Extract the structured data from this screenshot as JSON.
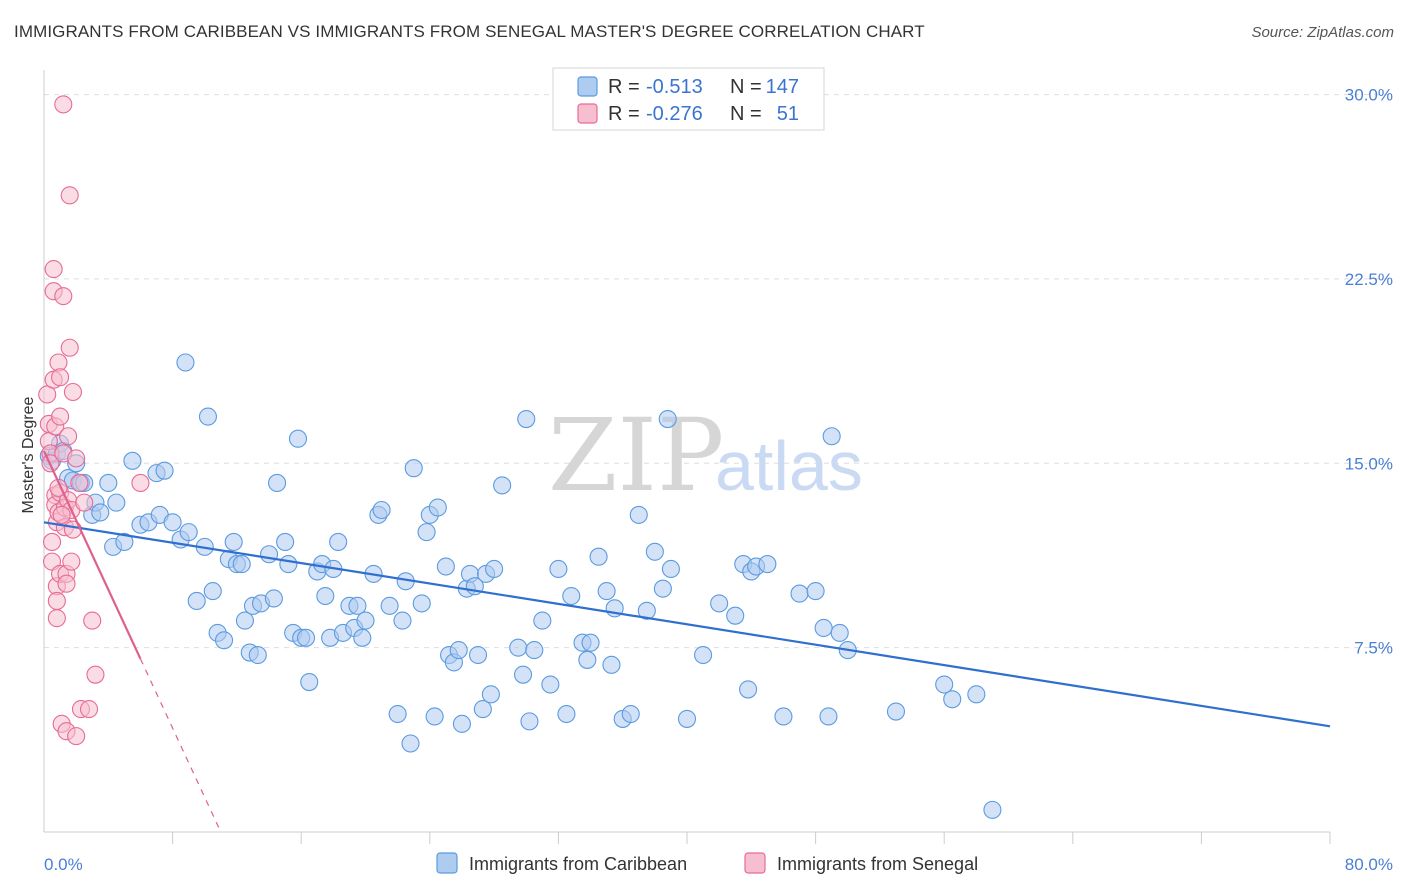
{
  "header": {
    "title": "IMMIGRANTS FROM CARIBBEAN VS IMMIGRANTS FROM SENEGAL MASTER'S DEGREE CORRELATION CHART",
    "source": "Source: ZipAtlas.com"
  },
  "watermark": {
    "zip": "ZIP",
    "atlas": "atlas"
  },
  "colors": {
    "caribbean": "#5b9be0",
    "caribbean_fill": "#aecbf0",
    "senegal": "#e86a96",
    "senegal_fill": "#f6bfd0",
    "caribbean_line": "#2f6fcf",
    "senegal_line": "#e0608c"
  },
  "legend_top": {
    "rows": [
      {
        "r_label": "R =",
        "r_value": "-0.513",
        "n_label": "N =",
        "n_value": "147"
      },
      {
        "r_label": "R =",
        "r_value": "-0.276",
        "n_label": "N =",
        "n_value": "51"
      }
    ]
  },
  "chart_data": {
    "type": "scatter",
    "title": "IMMIGRANTS FROM CARIBBEAN VS IMMIGRANTS FROM SENEGAL MASTER'S DEGREE CORRELATION CHART",
    "xlabel": "",
    "ylabel": "Master's Degree",
    "xlim": [
      0,
      80
    ],
    "ylim": [
      0,
      31
    ],
    "x_tick_labels": [
      "0.0%",
      "80.0%"
    ],
    "y_ticks": [
      7.5,
      15.0,
      22.5,
      30.0
    ],
    "y_tick_labels": [
      "7.5%",
      "15.0%",
      "22.5%",
      "30.0%"
    ],
    "series": [
      {
        "name": "Immigrants from Caribbean",
        "trend": {
          "x": [
            0,
            80
          ],
          "y": [
            12.6,
            4.3
          ]
        },
        "points": [
          [
            0.3,
            15.3
          ],
          [
            0.5,
            15.1
          ],
          [
            0.8,
            15.4
          ],
          [
            1.0,
            15.8
          ],
          [
            1.2,
            15.5
          ],
          [
            1.5,
            14.4
          ],
          [
            1.8,
            14.3
          ],
          [
            2.0,
            15.0
          ],
          [
            2.3,
            14.2
          ],
          [
            2.5,
            14.2
          ],
          [
            3.0,
            12.9
          ],
          [
            3.2,
            13.4
          ],
          [
            3.5,
            13.0
          ],
          [
            4.0,
            14.2
          ],
          [
            4.3,
            11.6
          ],
          [
            4.5,
            13.4
          ],
          [
            5.0,
            11.8
          ],
          [
            5.5,
            15.1
          ],
          [
            6.0,
            12.5
          ],
          [
            6.5,
            12.6
          ],
          [
            7.0,
            14.6
          ],
          [
            7.2,
            12.9
          ],
          [
            7.5,
            14.7
          ],
          [
            8.0,
            12.6
          ],
          [
            8.5,
            11.9
          ],
          [
            8.8,
            19.1
          ],
          [
            9.0,
            12.2
          ],
          [
            9.5,
            9.4
          ],
          [
            10.0,
            11.6
          ],
          [
            10.2,
            16.9
          ],
          [
            10.5,
            9.8
          ],
          [
            10.8,
            8.1
          ],
          [
            11.2,
            7.8
          ],
          [
            11.5,
            11.1
          ],
          [
            11.8,
            11.8
          ],
          [
            12.0,
            10.9
          ],
          [
            12.3,
            10.9
          ],
          [
            12.5,
            8.6
          ],
          [
            12.8,
            7.3
          ],
          [
            13.0,
            9.2
          ],
          [
            13.3,
            7.2
          ],
          [
            13.5,
            9.3
          ],
          [
            14.0,
            11.3
          ],
          [
            14.3,
            9.5
          ],
          [
            14.5,
            14.2
          ],
          [
            15.0,
            11.8
          ],
          [
            15.2,
            10.9
          ],
          [
            15.5,
            8.1
          ],
          [
            15.8,
            16.0
          ],
          [
            16.0,
            7.9
          ],
          [
            16.3,
            7.9
          ],
          [
            16.5,
            6.1
          ],
          [
            17.0,
            10.6
          ],
          [
            17.3,
            10.9
          ],
          [
            17.5,
            9.6
          ],
          [
            17.8,
            7.9
          ],
          [
            18.0,
            10.7
          ],
          [
            18.3,
            11.8
          ],
          [
            18.6,
            8.1
          ],
          [
            19.0,
            9.2
          ],
          [
            19.3,
            8.3
          ],
          [
            19.5,
            9.2
          ],
          [
            19.8,
            7.9
          ],
          [
            20.0,
            8.6
          ],
          [
            20.5,
            10.5
          ],
          [
            20.8,
            12.9
          ],
          [
            21.0,
            13.1
          ],
          [
            21.5,
            9.2
          ],
          [
            22.0,
            4.8
          ],
          [
            22.3,
            8.6
          ],
          [
            22.5,
            10.2
          ],
          [
            22.8,
            3.6
          ],
          [
            23.0,
            14.8
          ],
          [
            23.5,
            9.3
          ],
          [
            23.8,
            12.2
          ],
          [
            24.0,
            12.9
          ],
          [
            24.3,
            4.7
          ],
          [
            24.5,
            13.2
          ],
          [
            25.0,
            10.8
          ],
          [
            25.2,
            7.2
          ],
          [
            25.5,
            6.9
          ],
          [
            25.8,
            7.4
          ],
          [
            26.0,
            4.4
          ],
          [
            26.3,
            9.9
          ],
          [
            26.5,
            10.5
          ],
          [
            26.8,
            10.0
          ],
          [
            27.0,
            7.2
          ],
          [
            27.3,
            5.0
          ],
          [
            27.5,
            10.5
          ],
          [
            27.8,
            5.6
          ],
          [
            28.0,
            10.7
          ],
          [
            28.5,
            14.1
          ],
          [
            29.5,
            7.5
          ],
          [
            29.8,
            6.4
          ],
          [
            30.0,
            16.8
          ],
          [
            30.2,
            4.5
          ],
          [
            30.5,
            7.4
          ],
          [
            31.0,
            8.6
          ],
          [
            31.5,
            6.0
          ],
          [
            32.0,
            10.7
          ],
          [
            32.5,
            4.8
          ],
          [
            32.8,
            9.6
          ],
          [
            33.5,
            7.7
          ],
          [
            33.8,
            7.0
          ],
          [
            34.0,
            7.7
          ],
          [
            34.5,
            11.2
          ],
          [
            35.0,
            9.8
          ],
          [
            35.3,
            6.8
          ],
          [
            35.5,
            9.1
          ],
          [
            36.0,
            4.6
          ],
          [
            36.5,
            4.8
          ],
          [
            37.0,
            12.9
          ],
          [
            37.5,
            9.0
          ],
          [
            38.0,
            11.4
          ],
          [
            38.5,
            9.9
          ],
          [
            38.8,
            16.8
          ],
          [
            39.0,
            10.7
          ],
          [
            40.0,
            4.6
          ],
          [
            41.0,
            7.2
          ],
          [
            42.0,
            9.3
          ],
          [
            43.0,
            8.8
          ],
          [
            43.5,
            10.9
          ],
          [
            43.8,
            5.8
          ],
          [
            44.0,
            10.6
          ],
          [
            44.3,
            10.8
          ],
          [
            45.0,
            10.9
          ],
          [
            46.0,
            4.7
          ],
          [
            47.0,
            9.7
          ],
          [
            48.0,
            9.8
          ],
          [
            48.5,
            8.3
          ],
          [
            48.8,
            4.7
          ],
          [
            49.0,
            16.1
          ],
          [
            49.5,
            8.1
          ],
          [
            50.0,
            7.4
          ],
          [
            53.0,
            4.9
          ],
          [
            56.0,
            6.0
          ],
          [
            56.5,
            5.4
          ],
          [
            58.0,
            5.6
          ],
          [
            59.0,
            0.9
          ]
        ]
      },
      {
        "name": "Immigrants from Senegal",
        "trend": {
          "x": [
            0,
            11
          ],
          "y": [
            15.5,
            0.0
          ],
          "solid_until_x": 6.0
        },
        "points": [
          [
            0.2,
            17.8
          ],
          [
            0.3,
            16.6
          ],
          [
            0.3,
            15.9
          ],
          [
            0.4,
            15.4
          ],
          [
            0.4,
            15.0
          ],
          [
            0.5,
            11.8
          ],
          [
            0.5,
            11.0
          ],
          [
            0.6,
            22.9
          ],
          [
            0.6,
            22.0
          ],
          [
            0.6,
            18.4
          ],
          [
            0.7,
            16.5
          ],
          [
            0.7,
            13.7
          ],
          [
            0.7,
            13.3
          ],
          [
            0.8,
            12.6
          ],
          [
            0.8,
            10.0
          ],
          [
            0.8,
            9.4
          ],
          [
            0.8,
            8.7
          ],
          [
            0.9,
            19.1
          ],
          [
            0.9,
            13.0
          ],
          [
            1.0,
            18.5
          ],
          [
            1.0,
            16.9
          ],
          [
            1.0,
            13.8
          ],
          [
            1.0,
            10.5
          ],
          [
            1.1,
            4.4
          ],
          [
            1.2,
            29.6
          ],
          [
            1.2,
            21.8
          ],
          [
            1.2,
            15.4
          ],
          [
            1.3,
            13.2
          ],
          [
            1.3,
            12.4
          ],
          [
            1.4,
            10.5
          ],
          [
            1.4,
            10.1
          ],
          [
            1.4,
            4.1
          ],
          [
            1.5,
            16.1
          ],
          [
            1.5,
            13.5
          ],
          [
            1.6,
            25.9
          ],
          [
            1.6,
            19.7
          ],
          [
            1.7,
            13.1
          ],
          [
            1.8,
            17.9
          ],
          [
            1.8,
            12.3
          ],
          [
            2.0,
            15.2
          ],
          [
            2.0,
            3.9
          ],
          [
            2.3,
            5.0
          ],
          [
            2.5,
            13.4
          ],
          [
            2.8,
            5.0
          ],
          [
            3.0,
            8.6
          ],
          [
            3.2,
            6.4
          ],
          [
            1.1,
            12.9
          ],
          [
            0.9,
            14.0
          ],
          [
            1.7,
            11.0
          ],
          [
            2.2,
            14.2
          ],
          [
            6.0,
            14.2
          ]
        ]
      }
    ]
  },
  "bottom_legend": {
    "caribbean_label": "Immigrants from Caribbean",
    "senegal_label": "Immigrants from Senegal"
  }
}
